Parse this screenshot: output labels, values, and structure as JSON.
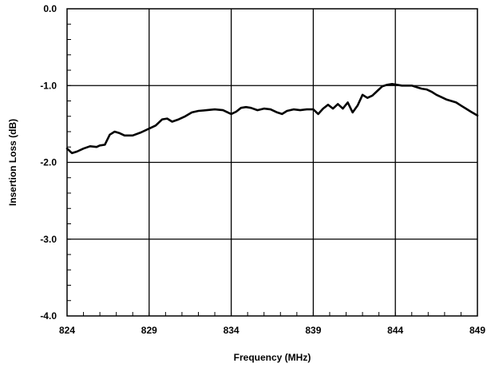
{
  "chart_data": {
    "type": "line",
    "title": "",
    "xlabel": "Frequency (MHz)",
    "ylabel": "Insertion Loss (dB)",
    "xlim": [
      824,
      849
    ],
    "ylim": [
      -4.0,
      0.0
    ],
    "x_ticks": [
      824,
      829,
      834,
      839,
      844,
      849
    ],
    "x_tick_labels": [
      "824",
      "829",
      "834",
      "839",
      "844",
      "849"
    ],
    "y_ticks": [
      0.0,
      -1.0,
      -2.0,
      -3.0,
      -4.0
    ],
    "y_tick_labels": [
      "0.0",
      "-1.0",
      "-2.0",
      "-3.0",
      "-4.0"
    ],
    "minor_x_step": 1,
    "minor_y_step": 0.2,
    "grid": true,
    "legend": "none",
    "line_color": "#000000",
    "series": [
      {
        "x": [
          824.0,
          824.3,
          824.6,
          825.0,
          825.4,
          825.8,
          826.0,
          826.3,
          826.6,
          826.9,
          827.2,
          827.5,
          828.0,
          828.5,
          829.0,
          829.4,
          829.8,
          830.1,
          830.4,
          830.8,
          831.2,
          831.6,
          832.0,
          832.5,
          833.0,
          833.5,
          834.0,
          834.3,
          834.6,
          834.9,
          835.2,
          835.6,
          836.0,
          836.4,
          836.8,
          837.1,
          837.4,
          837.8,
          838.2,
          838.6,
          839.0,
          839.3,
          839.6,
          839.9,
          840.2,
          840.5,
          840.8,
          841.1,
          841.4,
          841.7,
          842.0,
          842.3,
          842.6,
          842.9,
          843.2,
          843.5,
          843.8,
          844.1,
          844.4,
          844.7,
          845.0,
          845.3,
          845.6,
          845.9,
          846.2,
          846.5,
          846.8,
          847.1,
          847.4,
          847.7,
          848.0,
          848.3,
          848.6,
          849.0
        ],
        "y": [
          -1.82,
          -1.88,
          -1.86,
          -1.82,
          -1.79,
          -1.8,
          -1.78,
          -1.77,
          -1.64,
          -1.6,
          -1.62,
          -1.65,
          -1.65,
          -1.61,
          -1.56,
          -1.52,
          -1.44,
          -1.43,
          -1.47,
          -1.44,
          -1.4,
          -1.35,
          -1.33,
          -1.32,
          -1.31,
          -1.32,
          -1.37,
          -1.34,
          -1.29,
          -1.28,
          -1.29,
          -1.32,
          -1.3,
          -1.31,
          -1.35,
          -1.37,
          -1.33,
          -1.31,
          -1.32,
          -1.31,
          -1.31,
          -1.37,
          -1.3,
          -1.25,
          -1.3,
          -1.24,
          -1.3,
          -1.22,
          -1.35,
          -1.26,
          -1.12,
          -1.16,
          -1.13,
          -1.07,
          -1.01,
          -0.99,
          -0.98,
          -0.99,
          -1.0,
          -1.0,
          -1.0,
          -1.02,
          -1.04,
          -1.05,
          -1.08,
          -1.12,
          -1.15,
          -1.18,
          -1.2,
          -1.22,
          -1.26,
          -1.3,
          -1.34,
          -1.39
        ]
      }
    ]
  }
}
